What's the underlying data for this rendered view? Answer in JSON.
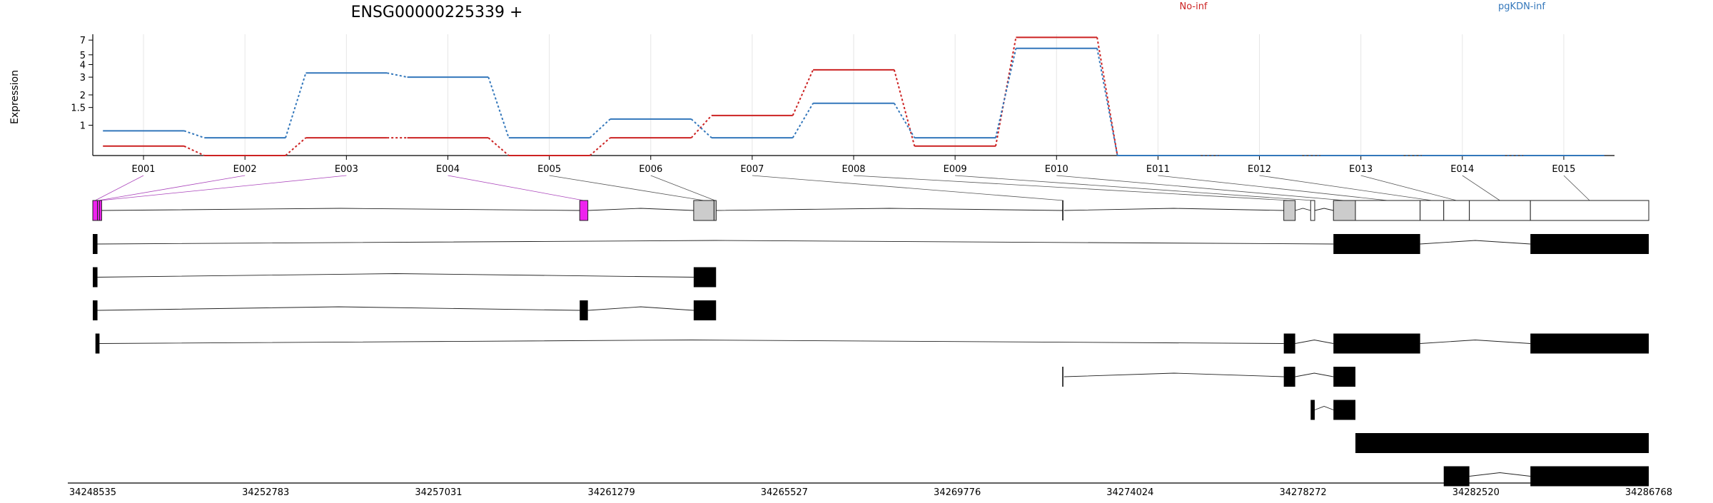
{
  "chart_data": {
    "type": "line",
    "title": "ENSG00000225339 +",
    "ylabel": "Expression",
    "yscale": "log",
    "ylim": [
      0.5,
      8
    ],
    "yticks": [
      1,
      1.5,
      2,
      3,
      4,
      5,
      7
    ],
    "grid": true,
    "legend_placement": "top",
    "categories": [
      "E001",
      "E002",
      "E003",
      "E004",
      "E005",
      "E006",
      "E007",
      "E008",
      "E009",
      "E010",
      "E011",
      "E012",
      "E013",
      "E014",
      "E015"
    ],
    "series": [
      {
        "name": "No-inf",
        "color": "#cc2222",
        "values": [
          0.62,
          0.5,
          0.75,
          0.75,
          0.5,
          0.75,
          1.25,
          3.55,
          0.62,
          7.45,
          0.5,
          0.5,
          0.5,
          0.5,
          0.5
        ]
      },
      {
        "name": "pgKDN-inf",
        "color": "#3377bb",
        "values": [
          0.88,
          0.75,
          3.3,
          3.0,
          0.75,
          1.15,
          0.75,
          1.65,
          0.75,
          5.8,
          0.5,
          0.5,
          0.5,
          0.5,
          0.5
        ]
      }
    ],
    "genomic_axis": {
      "start": 34248535,
      "end": 34286768,
      "ticks": [
        34248535,
        34252783,
        34257031,
        34261279,
        34265527,
        34269776,
        34274024,
        34278272,
        34282520,
        34286768
      ]
    },
    "exons": [
      {
        "id": "E001",
        "start": 34248535,
        "end": 34248650,
        "color": "#ee22ee"
      },
      {
        "id": "E002",
        "start": 34248650,
        "end": 34248700,
        "color": "#ee22ee"
      },
      {
        "id": "E003",
        "start": 34248700,
        "end": 34248750,
        "color": "#ee22ee"
      },
      {
        "id": "E004",
        "start": 34260500,
        "end": 34260700,
        "color": "#ee22ee"
      },
      {
        "id": "E005",
        "start": 34263300,
        "end": 34263800,
        "color": "#cccccc"
      },
      {
        "id": "E006",
        "start": 34263800,
        "end": 34263850,
        "color": "#cccccc"
      },
      {
        "id": "E007",
        "start": 34272370,
        "end": 34272400,
        "color": "#ffffff"
      },
      {
        "id": "E008",
        "start": 34277800,
        "end": 34278080,
        "color": "#cccccc"
      },
      {
        "id": "E009",
        "start": 34278460,
        "end": 34278560,
        "color": "#ffffff"
      },
      {
        "id": "E010",
        "start": 34279020,
        "end": 34279560,
        "color": "#cccccc"
      },
      {
        "id": "E011",
        "start": 34279560,
        "end": 34281150,
        "color": "#ffffff"
      },
      {
        "id": "E012",
        "start": 34281150,
        "end": 34281730,
        "color": "#ffffff"
      },
      {
        "id": "E013",
        "start": 34281730,
        "end": 34282360,
        "color": "#ffffff"
      },
      {
        "id": "E014",
        "start": 34282360,
        "end": 34283860,
        "color": "#ffffff"
      },
      {
        "id": "E015",
        "start": 34283860,
        "end": 34286768,
        "color": "#ffffff"
      }
    ],
    "transcripts": [
      [
        [
          34248535,
          34248650
        ],
        [
          34279020,
          34281150
        ],
        [
          34283860,
          34286768
        ]
      ],
      [
        [
          34248535,
          34248650
        ],
        [
          34263300,
          34263850
        ]
      ],
      [
        [
          34248535,
          34248650
        ],
        [
          34260500,
          34260700
        ],
        [
          34263300,
          34263850
        ]
      ],
      [
        [
          34248600,
          34248700
        ],
        [
          34277800,
          34278080
        ],
        [
          34279020,
          34281150
        ],
        [
          34283860,
          34286768
        ]
      ],
      [
        [
          34272370,
          34272400
        ],
        [
          34277800,
          34278080
        ],
        [
          34279020,
          34279560
        ]
      ],
      [
        [
          34278460,
          34278560
        ],
        [
          34279020,
          34279560
        ]
      ],
      [
        [
          34279560,
          34286768
        ]
      ],
      [
        [
          34281730,
          34282360
        ],
        [
          34283860,
          34286768
        ]
      ]
    ]
  }
}
